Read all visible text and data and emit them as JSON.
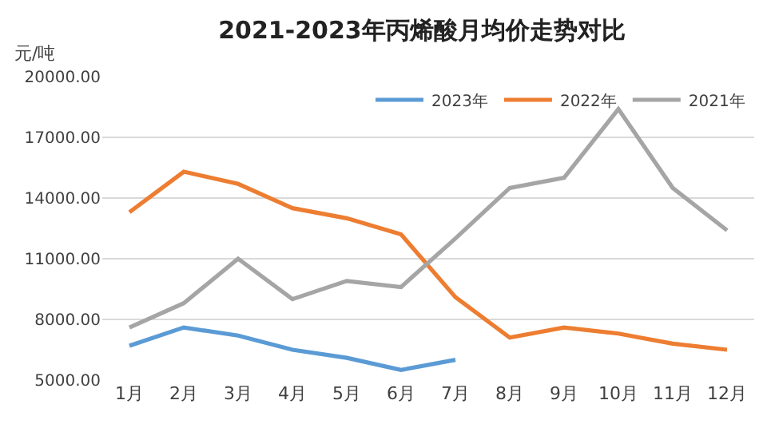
{
  "chart_data": {
    "type": "line",
    "title": "2021-2023年丙烯酸月均价走势对比",
    "ylabel": "元/吨",
    "categories": [
      "1月",
      "2月",
      "3月",
      "4月",
      "5月",
      "6月",
      "7月",
      "8月",
      "9月",
      "10月",
      "11月",
      "12月"
    ],
    "series": [
      {
        "name": "2023年",
        "color": "#5b9bd5",
        "values": [
          6700,
          7600,
          7200,
          6500,
          6100,
          5500,
          6000,
          null,
          null,
          null,
          null,
          null
        ]
      },
      {
        "name": "2022年",
        "color": "#ed7d31",
        "values": [
          13300,
          15300,
          14700,
          13500,
          13000,
          12200,
          9100,
          7100,
          7600,
          7300,
          6800,
          6500
        ]
      },
      {
        "name": "2021年",
        "color": "#a5a5a5",
        "values": [
          7600,
          8800,
          11000,
          9000,
          9900,
          9600,
          12000,
          14500,
          15000,
          18400,
          14500,
          12400
        ]
      }
    ],
    "ylim": [
      5000,
      20000
    ],
    "yticks": [
      {
        "value": 5000,
        "label": "5000.00"
      },
      {
        "value": 8000,
        "label": "8000.00"
      },
      {
        "value": 11000,
        "label": "11000.00"
      },
      {
        "value": 14000,
        "label": "14000.00"
      },
      {
        "value": 17000,
        "label": "17000.00"
      },
      {
        "value": 20000,
        "label": "20000.00"
      }
    ],
    "grid": "y",
    "legend": "top right",
    "marker": "none",
    "line_style": "solid"
  }
}
